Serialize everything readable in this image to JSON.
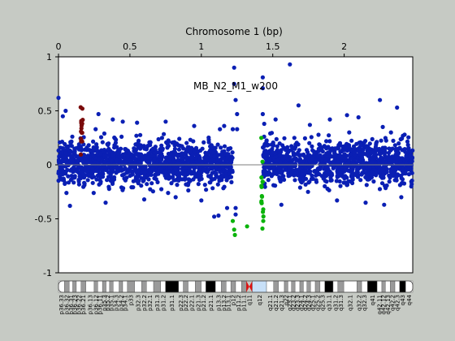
{
  "chart_data": {
    "type": "scatter",
    "title": "MB_N2_M1_w200",
    "xlabel": "Chromosome 1 (bp)",
    "ylabel": "",
    "xlim": [
      0,
      2.48
    ],
    "ylim": [
      -1,
      1
    ],
    "x_ticks": [
      {
        "value": 0,
        "label": "0"
      },
      {
        "value": 0.5,
        "label": "0.5"
      },
      {
        "value": 1,
        "label": "1"
      },
      {
        "value": 1.5,
        "label": "1.5"
      },
      {
        "value": 2,
        "label": "2"
      }
    ],
    "y_ticks": [
      {
        "value": 1,
        "label": "1"
      },
      {
        "value": 0.5,
        "label": "0.5"
      },
      {
        "value": 0,
        "label": "0"
      },
      {
        "value": -0.5,
        "label": "-0.5"
      },
      {
        "value": -1,
        "label": "-1"
      }
    ],
    "zero_line": 0,
    "colors": {
      "normal": "#0a1fb4",
      "gain": "#7a0a0a",
      "loss": "#0bb30b",
      "zero_line": "#7d7d7d",
      "centromere": "#e01010",
      "stalk": "#c8e0f8"
    },
    "series": [
      {
        "color": "#0a1fb4",
        "segments": [
          {
            "x_range": [
              0.0,
              1.22
            ],
            "y_low": -0.26,
            "y_high": 0.29
          },
          {
            "x_range": [
              1.43,
              2.48
            ],
            "y_low": -0.25,
            "y_high": 0.3
          }
        ],
        "outliers": [
          {
            "x": 0.0,
            "y": 0.62
          },
          {
            "x": 0.03,
            "y": 0.45
          },
          {
            "x": 0.05,
            "y": 0.5
          },
          {
            "x": 0.08,
            "y": -0.38
          },
          {
            "x": 0.26,
            "y": 0.33
          },
          {
            "x": 0.28,
            "y": 0.47
          },
          {
            "x": 0.33,
            "y": -0.35
          },
          {
            "x": 0.38,
            "y": 0.42
          },
          {
            "x": 0.45,
            "y": 0.4
          },
          {
            "x": 0.55,
            "y": 0.39
          },
          {
            "x": 0.6,
            "y": -0.32
          },
          {
            "x": 0.75,
            "y": 0.4
          },
          {
            "x": 0.82,
            "y": -0.3
          },
          {
            "x": 0.95,
            "y": 0.36
          },
          {
            "x": 1.0,
            "y": -0.33
          },
          {
            "x": 1.12,
            "y": -0.47
          },
          {
            "x": 1.16,
            "y": 0.36
          },
          {
            "x": 1.18,
            "y": -0.4
          },
          {
            "x": 1.22,
            "y": 0.33
          },
          {
            "x": 1.23,
            "y": 0.9
          },
          {
            "x": 1.23,
            "y": 0.75
          },
          {
            "x": 1.24,
            "y": 0.6
          },
          {
            "x": 1.25,
            "y": 0.47
          },
          {
            "x": 1.25,
            "y": 0.33
          },
          {
            "x": 1.24,
            "y": -0.4
          },
          {
            "x": 1.24,
            "y": -0.46
          },
          {
            "x": 1.43,
            "y": 0.81
          },
          {
            "x": 1.43,
            "y": 0.71
          },
          {
            "x": 1.43,
            "y": 0.47
          },
          {
            "x": 1.44,
            "y": 0.38
          },
          {
            "x": 1.52,
            "y": 0.42
          },
          {
            "x": 1.56,
            "y": -0.37
          },
          {
            "x": 1.62,
            "y": 0.93
          },
          {
            "x": 1.68,
            "y": 0.55
          },
          {
            "x": 1.76,
            "y": 0.37
          },
          {
            "x": 1.9,
            "y": 0.42
          },
          {
            "x": 1.95,
            "y": -0.33
          },
          {
            "x": 2.02,
            "y": 0.46
          },
          {
            "x": 2.1,
            "y": 0.44
          },
          {
            "x": 2.15,
            "y": -0.35
          },
          {
            "x": 2.25,
            "y": 0.6
          },
          {
            "x": 2.27,
            "y": 0.35
          },
          {
            "x": 2.28,
            "y": -0.37
          },
          {
            "x": 2.37,
            "y": 0.53
          },
          {
            "x": 2.4,
            "y": -0.3
          },
          {
            "x": 2.47,
            "y": -0.2
          },
          {
            "x": 1.09,
            "y": -0.48
          },
          {
            "x": 1.13,
            "y": 0.33
          }
        ]
      },
      {
        "color": "#7a0a0a",
        "segments": [
          {
            "x_range": [
              0.155,
              0.17
            ],
            "y_low": 0.03,
            "y_high": 0.7
          }
        ],
        "outliers": []
      },
      {
        "color": "#0bb30b",
        "segments": [
          {
            "x_range": [
              1.42,
              1.435
            ],
            "y_low": -0.74,
            "y_high": 0.2
          }
        ],
        "outliers": [
          {
            "x": 1.22,
            "y": -0.52
          },
          {
            "x": 1.23,
            "y": -0.6
          },
          {
            "x": 1.235,
            "y": -0.65
          },
          {
            "x": 1.32,
            "y": -0.57
          },
          {
            "x": 1.42,
            "y": 0.25
          }
        ]
      }
    ],
    "ideogram": {
      "bands": [
        {
          "label": "p36.33",
          "start": 0.0,
          "end": 0.025,
          "stain": "white"
        },
        {
          "label": "p36.32",
          "start": 0.025,
          "end": 0.045,
          "stain": "gray"
        },
        {
          "label": "p36.31",
          "start": 0.045,
          "end": 0.06,
          "stain": "white"
        },
        {
          "label": "p36.23",
          "start": 0.06,
          "end": 0.075,
          "stain": "gray"
        },
        {
          "label": "p36.22",
          "start": 0.075,
          "end": 0.095,
          "stain": "white"
        },
        {
          "label": "p36.21",
          "start": 0.095,
          "end": 0.115,
          "stain": "gray"
        },
        {
          "label": "p36.13",
          "start": 0.115,
          "end": 0.15,
          "stain": "white"
        },
        {
          "label": "p36.12",
          "start": 0.15,
          "end": 0.165,
          "stain": "gray"
        },
        {
          "label": "p36.11",
          "start": 0.165,
          "end": 0.185,
          "stain": "white"
        },
        {
          "label": "p35.3",
          "start": 0.185,
          "end": 0.2,
          "stain": "gray"
        },
        {
          "label": "p35.2",
          "start": 0.2,
          "end": 0.215,
          "stain": "white"
        },
        {
          "label": "p35.1",
          "start": 0.215,
          "end": 0.23,
          "stain": "gray"
        },
        {
          "label": "p34.3",
          "start": 0.23,
          "end": 0.255,
          "stain": "white"
        },
        {
          "label": "p34.2",
          "start": 0.255,
          "end": 0.27,
          "stain": "gray"
        },
        {
          "label": "p34.1",
          "start": 0.27,
          "end": 0.29,
          "stain": "white"
        },
        {
          "label": "p33",
          "start": 0.29,
          "end": 0.32,
          "stain": "gray"
        },
        {
          "label": "p32.3",
          "start": 0.32,
          "end": 0.35,
          "stain": "white"
        },
        {
          "label": "p32.2",
          "start": 0.35,
          "end": 0.37,
          "stain": "gray"
        },
        {
          "label": "p32.1",
          "start": 0.37,
          "end": 0.4,
          "stain": "white"
        },
        {
          "label": "p31.3",
          "start": 0.4,
          "end": 0.43,
          "stain": "gray"
        },
        {
          "label": "p31.2",
          "start": 0.43,
          "end": 0.45,
          "stain": "white"
        },
        {
          "label": "p31.1",
          "start": 0.45,
          "end": 0.505,
          "stain": "black"
        },
        {
          "label": "p22.3",
          "start": 0.505,
          "end": 0.525,
          "stain": "white"
        },
        {
          "label": "p22.2",
          "start": 0.525,
          "end": 0.545,
          "stain": "gray"
        },
        {
          "label": "p22.1",
          "start": 0.545,
          "end": 0.575,
          "stain": "white"
        },
        {
          "label": "p21.3",
          "start": 0.575,
          "end": 0.6,
          "stain": "gray"
        },
        {
          "label": "p21.2",
          "start": 0.6,
          "end": 0.62,
          "stain": "white"
        },
        {
          "label": "p21.1",
          "start": 0.62,
          "end": 0.66,
          "stain": "black"
        },
        {
          "label": "p13.3",
          "start": 0.66,
          "end": 0.685,
          "stain": "white"
        },
        {
          "label": "p13.2",
          "start": 0.685,
          "end": 0.705,
          "stain": "gray"
        },
        {
          "label": "p13.1",
          "start": 0.705,
          "end": 0.725,
          "stain": "white"
        },
        {
          "label": "p12",
          "start": 0.725,
          "end": 0.745,
          "stain": "gray"
        },
        {
          "label": "p11.2",
          "start": 0.745,
          "end": 0.77,
          "stain": "white"
        },
        {
          "label": "p11.1",
          "start": 0.77,
          "end": 0.79,
          "stain": "gray"
        },
        {
          "label": "q11",
          "start": 0.79,
          "end": 0.815,
          "stain": "centromere"
        },
        {
          "label": "q12",
          "start": 0.815,
          "end": 0.875,
          "stain": "stalk"
        },
        {
          "label": "q21.1",
          "start": 0.875,
          "end": 0.905,
          "stain": "white"
        },
        {
          "label": "q21.2",
          "start": 0.905,
          "end": 0.925,
          "stain": "gray"
        },
        {
          "label": "q21.3",
          "start": 0.925,
          "end": 0.95,
          "stain": "white"
        },
        {
          "label": "q22",
          "start": 0.95,
          "end": 0.965,
          "stain": "gray"
        },
        {
          "label": "q23.1",
          "start": 0.965,
          "end": 0.98,
          "stain": "white"
        },
        {
          "label": "q23.2",
          "start": 0.98,
          "end": 0.995,
          "stain": "gray"
        },
        {
          "label": "q23.3",
          "start": 0.995,
          "end": 1.015,
          "stain": "white"
        },
        {
          "label": "q24.1",
          "start": 1.015,
          "end": 1.03,
          "stain": "gray"
        },
        {
          "label": "q24.2",
          "start": 1.03,
          "end": 1.045,
          "stain": "white"
        },
        {
          "label": "q24.3",
          "start": 1.045,
          "end": 1.06,
          "stain": "gray"
        },
        {
          "label": "q25.1",
          "start": 1.06,
          "end": 1.08,
          "stain": "white"
        },
        {
          "label": "q25.2",
          "start": 1.08,
          "end": 1.1,
          "stain": "gray"
        },
        {
          "label": "q25.3",
          "start": 1.1,
          "end": 1.12,
          "stain": "white"
        },
        {
          "label": "q31.1",
          "start": 1.12,
          "end": 1.155,
          "stain": "black"
        },
        {
          "label": "q31.2",
          "start": 1.155,
          "end": 1.175,
          "stain": "white"
        },
        {
          "label": "q31.3",
          "start": 1.175,
          "end": 1.2,
          "stain": "gray"
        },
        {
          "label": "q32.1",
          "start": 1.2,
          "end": 1.255,
          "stain": "white"
        },
        {
          "label": "q32.2",
          "start": 1.255,
          "end": 1.275,
          "stain": "gray"
        },
        {
          "label": "q32.3",
          "start": 1.275,
          "end": 1.3,
          "stain": "white"
        },
        {
          "label": "q41",
          "start": 1.3,
          "end": 1.34,
          "stain": "black"
        },
        {
          "label": "q42.11",
          "start": 1.34,
          "end": 1.36,
          "stain": "white"
        },
        {
          "label": "q42.12",
          "start": 1.36,
          "end": 1.375,
          "stain": "gray"
        },
        {
          "label": "q42.13",
          "start": 1.375,
          "end": 1.395,
          "stain": "white"
        },
        {
          "label": "q42.2",
          "start": 1.395,
          "end": 1.415,
          "stain": "gray"
        },
        {
          "label": "q42.3",
          "start": 1.415,
          "end": 1.435,
          "stain": "white"
        },
        {
          "label": "q43",
          "start": 1.435,
          "end": 1.46,
          "stain": "black"
        },
        {
          "label": "q44",
          "start": 1.46,
          "end": 1.49,
          "stain": "white"
        }
      ],
      "total": 1.49
    }
  }
}
